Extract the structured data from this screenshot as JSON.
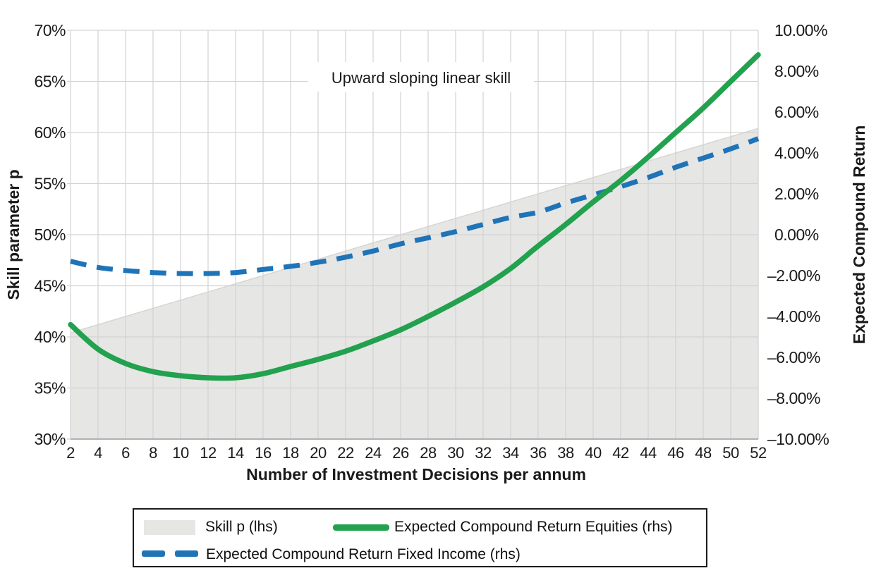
{
  "figure": {
    "annotation": "Upward sloping linear skill",
    "x_axis_label": "Number of Investment Decisions per annum",
    "y_left_axis_label": "Skill parameter p",
    "y_right_axis_label": "Expected Compound Return"
  },
  "colors": {
    "equities": "#22a14e",
    "fixed_income": "#1f73b7",
    "skill_fill": "#e6e6e5",
    "skill_edge": "#d6d6d4",
    "gridline": "#d3d3d3",
    "axis_line": "#9e9e9e",
    "text": "#1a1a1a"
  },
  "chart_data": {
    "type": "line",
    "title": "Upward sloping linear skill",
    "xlabel": "Number of Investment Decisions per annum",
    "ylabel_left": "Skill parameter p",
    "ylabel_right": "Expected Compound Return",
    "grid": true,
    "legend_position": "bottom",
    "x": [
      2,
      4,
      6,
      8,
      10,
      12,
      14,
      16,
      18,
      20,
      22,
      24,
      26,
      28,
      30,
      32,
      34,
      36,
      38,
      40,
      42,
      44,
      46,
      48,
      50,
      52
    ],
    "x_tick_labels": [
      "2",
      "4",
      "6",
      "8",
      "10",
      "12",
      "14",
      "16",
      "18",
      "20",
      "22",
      "24",
      "26",
      "28",
      "30",
      "32",
      "34",
      "36",
      "38",
      "40",
      "42",
      "44",
      "46",
      "48",
      "50",
      "52"
    ],
    "y_left": {
      "min": 30,
      "max": 70,
      "tick_step": 5,
      "unit": "%",
      "tick_labels": [
        "70%",
        "65%",
        "60%",
        "55%",
        "50%",
        "45%",
        "40%",
        "35%",
        "30%"
      ]
    },
    "y_right": {
      "min": -10,
      "max": 10,
      "tick_step": 2,
      "unit": "%",
      "tick_labels": [
        "10.00%",
        "8.00%",
        "6.00%",
        "4.00%",
        "2.00%",
        "0.00%",
        "–2.00%",
        "–4.00%",
        "–6.00%",
        "–8.00%",
        "–10.00%"
      ]
    },
    "series": [
      {
        "name": "Skill p (lhs)",
        "axis": "left",
        "style": "area",
        "values": [
          40.4,
          41.2,
          42.0,
          42.8,
          43.6,
          44.4,
          45.2,
          46.0,
          46.8,
          47.6,
          48.4,
          49.2,
          50.0,
          50.8,
          51.6,
          52.4,
          53.2,
          54.0,
          54.8,
          55.6,
          56.4,
          57.2,
          58.0,
          58.8,
          59.6,
          60.4
        ]
      },
      {
        "name": "Expected Compound Return Equities (rhs)",
        "axis": "right",
        "style": "solid",
        "values": [
          -4.4,
          -5.6,
          -6.3,
          -6.7,
          -6.9,
          -7.0,
          -7.0,
          -6.8,
          -6.45,
          -6.1,
          -5.7,
          -5.2,
          -4.65,
          -4.0,
          -3.3,
          -2.55,
          -1.65,
          -0.55,
          0.5,
          1.6,
          2.65,
          3.8,
          5.0,
          6.2,
          7.5,
          8.8
        ]
      },
      {
        "name": "Expected Compound Return Fixed Income (rhs)",
        "axis": "right",
        "style": "dashed",
        "values": [
          -1.3,
          -1.6,
          -1.75,
          -1.85,
          -1.9,
          -1.9,
          -1.85,
          -1.7,
          -1.55,
          -1.35,
          -1.1,
          -0.8,
          -0.45,
          -0.15,
          0.15,
          0.5,
          0.85,
          1.1,
          1.55,
          1.95,
          2.35,
          2.8,
          3.3,
          3.75,
          4.2,
          4.7
        ]
      }
    ]
  }
}
